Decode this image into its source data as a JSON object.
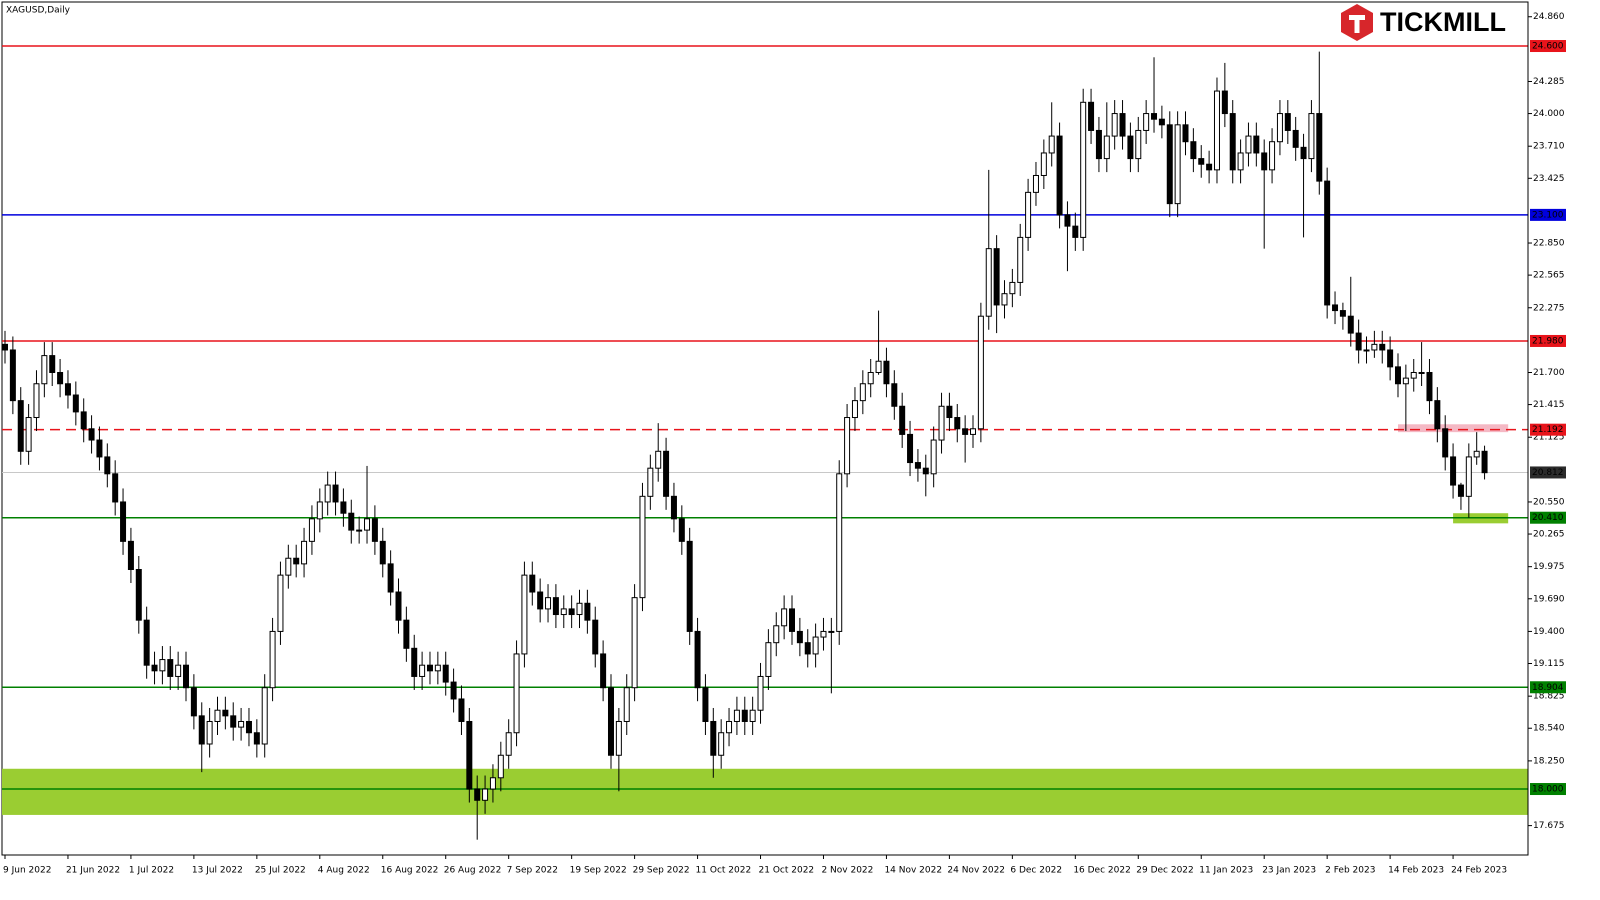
{
  "chart_data": {
    "type": "candlestick",
    "title": "XAGUSD,Daily",
    "logo": "TICKMILL",
    "up_color": "#ffffff",
    "down_color": "#000000",
    "categories": [
      "9 Jun 2022",
      null,
      null,
      null,
      null,
      null,
      null,
      null,
      "21 Jun 2022",
      null,
      null,
      null,
      null,
      null,
      null,
      null,
      "1 Jul 2022",
      null,
      null,
      null,
      null,
      null,
      null,
      null,
      "13 Jul 2022",
      null,
      null,
      null,
      null,
      null,
      null,
      null,
      "25 Jul 2022",
      null,
      null,
      null,
      null,
      null,
      null,
      null,
      "4 Aug 2022",
      null,
      null,
      null,
      null,
      null,
      null,
      null,
      "16 Aug 2022",
      null,
      null,
      null,
      null,
      null,
      null,
      null,
      "26 Aug 2022",
      null,
      null,
      null,
      null,
      null,
      null,
      null,
      "7 Sep 2022",
      null,
      null,
      null,
      null,
      null,
      null,
      null,
      "19 Sep 2022",
      null,
      null,
      null,
      null,
      null,
      null,
      null,
      "29 Sep 2022",
      null,
      null,
      null,
      null,
      null,
      null,
      null,
      "11 Oct 2022",
      null,
      null,
      null,
      null,
      null,
      null,
      null,
      "21 Oct 2022",
      null,
      null,
      null,
      null,
      null,
      null,
      null,
      "2 Nov 2022",
      null,
      null,
      null,
      null,
      null,
      null,
      null,
      "14 Nov 2022",
      null,
      null,
      null,
      null,
      null,
      null,
      null,
      "24 Nov 2022",
      null,
      null,
      null,
      null,
      null,
      null,
      null,
      "6 Dec 2022",
      null,
      null,
      null,
      null,
      null,
      null,
      null,
      "16 Dec 2022",
      null,
      null,
      null,
      null,
      null,
      null,
      null,
      "29 Dec 2022",
      null,
      null,
      null,
      null,
      null,
      null,
      null,
      "11 Jan 2023",
      null,
      null,
      null,
      null,
      null,
      null,
      null,
      "23 Jan 2023",
      null,
      null,
      null,
      null,
      null,
      null,
      null,
      "2 Feb 2023",
      null,
      null,
      null,
      null,
      null,
      null,
      null,
      "14 Feb 2023",
      null,
      null,
      null,
      null,
      null,
      null,
      null,
      "24 Feb 2023",
      null,
      null,
      null,
      null
    ],
    "open": [
      21.95,
      21.9,
      21.45,
      21.0,
      21.3,
      21.6,
      21.85,
      21.7,
      21.6,
      21.5,
      21.35,
      21.2,
      21.1,
      20.95,
      20.8,
      20.55,
      20.2,
      19.95,
      19.5,
      19.1,
      19.05,
      19.15,
      19.0,
      19.1,
      18.9,
      18.65,
      18.4,
      18.6,
      18.7,
      18.65,
      18.55,
      18.6,
      18.5,
      18.4,
      18.9,
      19.4,
      19.9,
      20.05,
      20.0,
      20.2,
      20.4,
      20.55,
      20.7,
      20.55,
      20.45,
      20.3,
      20.3,
      20.4,
      20.2,
      20.0,
      19.75,
      19.5,
      19.25,
      19.0,
      19.1,
      19.05,
      19.1,
      18.95,
      18.8,
      18.6,
      18.0,
      17.9,
      18.0,
      18.1,
      18.3,
      18.5,
      19.2,
      19.9,
      19.75,
      19.6,
      19.7,
      19.55,
      19.6,
      19.55,
      19.65,
      19.5,
      19.2,
      18.9,
      18.3,
      18.6,
      18.9,
      19.7,
      20.6,
      20.85,
      21.0,
      20.6,
      20.4,
      20.2,
      19.4,
      18.9,
      18.6,
      18.3,
      18.5,
      18.6,
      18.7,
      18.6,
      18.7,
      19.0,
      19.3,
      19.45,
      19.6,
      19.4,
      19.3,
      19.2,
      19.35,
      19.4,
      19.4,
      20.8,
      21.3,
      21.45,
      21.6,
      21.7,
      21.8,
      21.6,
      21.4,
      21.15,
      20.9,
      20.85,
      20.8,
      21.1,
      21.4,
      21.3,
      21.2,
      21.15,
      21.2,
      22.2,
      22.8,
      22.3,
      22.4,
      22.5,
      22.9,
      23.3,
      23.45,
      23.65,
      23.8,
      23.1,
      23.0,
      22.9,
      24.1,
      23.85,
      23.6,
      23.8,
      24.0,
      23.8,
      23.6,
      23.85,
      24.0,
      23.95,
      23.9,
      23.2,
      23.9,
      23.75,
      23.6,
      23.55,
      23.5,
      24.2,
      24.0,
      23.5,
      23.65,
      23.8,
      23.65,
      23.5,
      23.75,
      24.0,
      23.85,
      23.7,
      23.6,
      24.0,
      23.4,
      22.3,
      22.25,
      22.2,
      22.05,
      21.9,
      21.9,
      21.95,
      21.9,
      21.75,
      21.6,
      21.65,
      21.7,
      21.7,
      21.45,
      21.2,
      20.95,
      20.7,
      20.6,
      20.95,
      21.0
    ],
    "high": [
      22.07,
      22.02,
      21.57,
      21.42,
      21.72,
      21.97,
      21.97,
      21.82,
      21.72,
      21.62,
      21.47,
      21.32,
      21.22,
      21.07,
      20.92,
      20.67,
      20.32,
      20.07,
      19.62,
      19.22,
      19.27,
      19.27,
      19.22,
      19.22,
      19.02,
      18.77,
      18.72,
      18.82,
      18.82,
      18.77,
      18.72,
      18.72,
      18.62,
      19.02,
      19.52,
      20.02,
      20.17,
      20.17,
      20.32,
      20.52,
      20.67,
      20.82,
      20.82,
      20.67,
      20.57,
      20.42,
      20.87,
      20.52,
      20.32,
      20.12,
      19.87,
      19.62,
      19.37,
      19.22,
      19.22,
      19.22,
      19.22,
      19.07,
      18.92,
      18.72,
      18.12,
      18.12,
      18.22,
      18.42,
      18.62,
      19.32,
      20.02,
      20.02,
      19.87,
      19.82,
      19.82,
      19.72,
      19.72,
      19.77,
      19.77,
      19.62,
      19.32,
      19.02,
      18.72,
      19.02,
      19.82,
      20.72,
      20.97,
      21.25,
      21.12,
      20.72,
      20.52,
      20.32,
      19.52,
      19.02,
      18.72,
      18.62,
      18.72,
      18.82,
      18.82,
      18.82,
      19.12,
      19.42,
      19.57,
      19.72,
      19.72,
      19.52,
      19.42,
      19.47,
      19.52,
      19.52,
      20.92,
      21.42,
      21.57,
      21.72,
      21.82,
      22.25,
      21.92,
      21.72,
      21.52,
      21.27,
      21.02,
      20.97,
      21.22,
      21.52,
      21.52,
      21.42,
      21.32,
      21.32,
      22.32,
      23.5,
      22.92,
      22.52,
      22.62,
      23.02,
      23.42,
      23.57,
      23.77,
      24.1,
      23.92,
      23.22,
      23.12,
      24.22,
      24.22,
      23.97,
      24.1,
      24.12,
      24.12,
      23.92,
      23.97,
      24.12,
      24.5,
      24.07,
      24.02,
      24.02,
      24.02,
      23.87,
      23.72,
      23.67,
      24.32,
      24.45,
      24.12,
      23.77,
      23.92,
      23.92,
      23.77,
      23.87,
      24.12,
      24.12,
      23.97,
      23.82,
      24.12,
      24.55,
      23.52,
      22.42,
      22.32,
      22.55,
      22.17,
      22.02,
      22.07,
      22.07,
      22.02,
      21.87,
      21.77,
      21.82,
      21.97,
      21.82,
      21.57,
      21.32,
      21.07,
      20.72,
      21.07,
      21.17,
      21.05
    ],
    "low": [
      21.78,
      21.33,
      20.88,
      20.88,
      21.18,
      21.48,
      21.58,
      21.48,
      21.38,
      21.23,
      21.08,
      20.98,
      20.83,
      20.68,
      20.43,
      20.08,
      19.83,
      19.38,
      18.98,
      18.93,
      18.93,
      18.88,
      18.88,
      18.78,
      18.53,
      18.15,
      18.28,
      18.48,
      18.53,
      18.43,
      18.43,
      18.38,
      18.28,
      18.28,
      18.78,
      19.28,
      19.78,
      19.88,
      19.88,
      20.08,
      20.28,
      20.43,
      20.43,
      20.33,
      20.18,
      20.18,
      20.18,
      20.08,
      19.88,
      19.63,
      19.38,
      19.13,
      18.88,
      18.88,
      18.93,
      18.93,
      18.83,
      18.68,
      18.48,
      17.88,
      17.55,
      17.78,
      17.88,
      17.98,
      18.18,
      18.38,
      19.08,
      19.63,
      19.48,
      19.48,
      19.43,
      19.43,
      19.43,
      19.43,
      19.38,
      19.08,
      18.78,
      18.18,
      17.98,
      18.48,
      18.78,
      19.58,
      20.48,
      20.73,
      20.48,
      20.28,
      20.08,
      19.28,
      18.78,
      18.48,
      18.1,
      18.18,
      18.38,
      18.48,
      18.48,
      18.48,
      18.58,
      18.88,
      19.18,
      19.33,
      19.28,
      19.18,
      19.08,
      19.08,
      19.23,
      18.85,
      19.28,
      20.68,
      21.18,
      21.33,
      21.48,
      21.68,
      21.48,
      21.28,
      21.03,
      20.78,
      20.73,
      20.6,
      20.68,
      20.98,
      21.18,
      21.08,
      20.9,
      21.03,
      21.08,
      22.08,
      22.05,
      22.18,
      22.28,
      22.38,
      22.78,
      23.18,
      23.33,
      23.53,
      22.98,
      22.6,
      22.78,
      22.78,
      23.73,
      23.48,
      23.48,
      23.68,
      23.68,
      23.48,
      23.48,
      23.73,
      23.83,
      23.78,
      23.08,
      23.08,
      23.63,
      23.48,
      23.43,
      23.38,
      23.38,
      23.88,
      23.38,
      23.38,
      23.53,
      23.53,
      22.8,
      23.38,
      23.63,
      23.73,
      23.58,
      22.9,
      23.48,
      23.28,
      22.18,
      22.13,
      22.08,
      21.93,
      21.78,
      21.78,
      21.83,
      21.78,
      21.63,
      21.48,
      21.18,
      21.53,
      21.58,
      21.33,
      21.08,
      20.83,
      20.58,
      20.48,
      20.41,
      20.88,
      20.75
    ],
    "close": [
      21.9,
      21.45,
      21.0,
      21.3,
      21.6,
      21.85,
      21.7,
      21.6,
      21.5,
      21.35,
      21.2,
      21.1,
      20.95,
      20.8,
      20.55,
      20.2,
      19.95,
      19.5,
      19.1,
      19.05,
      19.15,
      19.0,
      19.1,
      18.9,
      18.65,
      18.4,
      18.6,
      18.7,
      18.65,
      18.55,
      18.6,
      18.5,
      18.4,
      18.9,
      19.4,
      19.9,
      20.05,
      20.0,
      20.2,
      20.4,
      20.55,
      20.7,
      20.55,
      20.45,
      20.3,
      20.3,
      20.4,
      20.2,
      20.0,
      19.75,
      19.5,
      19.25,
      19.0,
      19.1,
      19.05,
      19.1,
      18.95,
      18.8,
      18.6,
      18.0,
      17.9,
      18.0,
      18.1,
      18.3,
      18.5,
      19.2,
      19.9,
      19.75,
      19.6,
      19.7,
      19.55,
      19.6,
      19.55,
      19.65,
      19.5,
      19.2,
      18.9,
      18.3,
      18.6,
      18.9,
      19.7,
      20.6,
      20.85,
      21.0,
      20.6,
      20.4,
      20.2,
      19.4,
      18.9,
      18.6,
      18.3,
      18.5,
      18.6,
      18.7,
      18.6,
      18.7,
      19.0,
      19.3,
      19.45,
      19.6,
      19.4,
      19.3,
      19.2,
      19.35,
      19.4,
      19.4,
      20.8,
      21.3,
      21.45,
      21.6,
      21.7,
      21.8,
      21.6,
      21.4,
      21.15,
      20.9,
      20.85,
      20.8,
      21.1,
      21.4,
      21.3,
      21.2,
      21.15,
      21.2,
      22.2,
      22.8,
      22.3,
      22.4,
      22.5,
      22.9,
      23.3,
      23.45,
      23.65,
      23.8,
      23.1,
      23.0,
      22.9,
      24.1,
      23.85,
      23.6,
      23.8,
      24.0,
      23.8,
      23.6,
      23.85,
      24.0,
      23.95,
      23.9,
      23.2,
      23.9,
      23.75,
      23.6,
      23.55,
      23.5,
      24.2,
      24.0,
      23.5,
      23.65,
      23.8,
      23.65,
      23.5,
      23.75,
      24.0,
      23.85,
      23.7,
      23.6,
      24.0,
      23.4,
      22.3,
      22.25,
      22.2,
      22.05,
      21.9,
      21.9,
      21.95,
      21.9,
      21.75,
      21.6,
      21.65,
      21.7,
      21.7,
      21.45,
      21.2,
      20.95,
      20.7,
      20.6,
      20.95,
      21.0,
      20.81
    ],
    "ylim": [
      17.414,
      24.991
    ],
    "yticks": [
      {
        "value": 24.86,
        "label": "24.860"
      },
      {
        "value": 24.285,
        "label": "24.285"
      },
      {
        "value": 24.0,
        "label": "24.000"
      },
      {
        "value": 23.71,
        "label": "23.710"
      },
      {
        "value": 23.425,
        "label": "23.425"
      },
      {
        "value": 22.85,
        "label": "22.850"
      },
      {
        "value": 22.565,
        "label": "22.565"
      },
      {
        "value": 22.275,
        "label": "22.275"
      },
      {
        "value": 21.7,
        "label": "21.700"
      },
      {
        "value": 21.415,
        "label": "21.415"
      },
      {
        "value": 21.125,
        "label": "21.125"
      },
      {
        "value": 20.55,
        "label": "20.550"
      },
      {
        "value": 20.265,
        "label": "20.265"
      },
      {
        "value": 19.975,
        "label": "19.975"
      },
      {
        "value": 19.69,
        "label": "19.690"
      },
      {
        "value": 19.4,
        "label": "19.400"
      },
      {
        "value": 19.115,
        "label": "19.115"
      },
      {
        "value": 18.825,
        "label": "18.825"
      },
      {
        "value": 18.54,
        "label": "18.540"
      },
      {
        "value": 18.25,
        "label": "18.250"
      },
      {
        "value": 17.675,
        "label": "17.675"
      }
    ],
    "zones": [
      {
        "from": 17.77,
        "to": 18.18,
        "start": -1,
        "end": 194,
        "color": "#9acd32"
      },
      {
        "from": 21.17,
        "to": 21.24,
        "start": 177,
        "end": 191,
        "color": "#f4b8c4"
      },
      {
        "from": 20.36,
        "to": 20.45,
        "start": 184,
        "end": 191,
        "color": "#9acd32"
      }
    ],
    "levels": [
      {
        "value": 24.6,
        "label": "24.600",
        "color": "#e8141b",
        "style": "solid"
      },
      {
        "value": 23.1,
        "label": "23.100",
        "color": "#0000dd",
        "style": "solid"
      },
      {
        "value": 21.98,
        "label": "21.980",
        "color": "#e8141b",
        "style": "solid"
      },
      {
        "value": 21.192,
        "label": "21.192",
        "color": "#e8141b",
        "style": "dashed"
      },
      {
        "value": 20.41,
        "label": "20.410",
        "color": "#008000",
        "style": "solid"
      },
      {
        "value": 18.904,
        "label": "18.904",
        "color": "#008000",
        "style": "solid"
      },
      {
        "value": 18.0,
        "label": "18.000",
        "color": "#008000",
        "style": "solid"
      }
    ],
    "last_price": {
      "value": 20.812,
      "label": "20.812",
      "color": "#c8c8c8",
      "box_color": "#2b2b2b"
    }
  }
}
